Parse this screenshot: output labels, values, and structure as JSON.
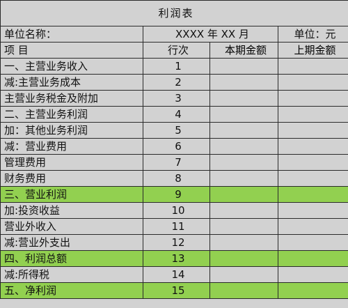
{
  "title": "利润表",
  "unit_label": "单位名称：",
  "period": "XXXX 年 XX 月",
  "currency_unit": "单位：元",
  "headers": {
    "item": "项      目",
    "line_no": "行次",
    "current_period": "本期金额",
    "previous_period": "上期金额"
  },
  "rows": [
    {
      "label": "一、主营业务收入",
      "no": "1"
    },
    {
      "label": "减:主营业务成本",
      "no": "2"
    },
    {
      "label": "主营业务税金及附加",
      "no": "3"
    },
    {
      "label": "二、主营业务利润",
      "no": "4"
    },
    {
      "label": "加：其他业务利润",
      "no": "5"
    },
    {
      "label": "减：营业费用",
      "no": "6"
    },
    {
      "label": "管理费用",
      "no": "7"
    },
    {
      "label": "财务费用",
      "no": "8"
    },
    {
      "label": "三、营业利润",
      "no": "9"
    },
    {
      "label": "加:投资收益",
      "no": "10"
    },
    {
      "label": "营业外收入",
      "no": "11"
    },
    {
      "label": "减:营业外支出",
      "no": "12"
    },
    {
      "label": "四、利润总额",
      "no": "13"
    },
    {
      "label": "减:所得税",
      "no": "14"
    },
    {
      "label": "五、净利润",
      "no": "15"
    }
  ],
  "colors": {
    "highlight_green": "#92d050",
    "header_blue": "#1a9fe0",
    "sheet_gray": "#d2d2d2"
  }
}
